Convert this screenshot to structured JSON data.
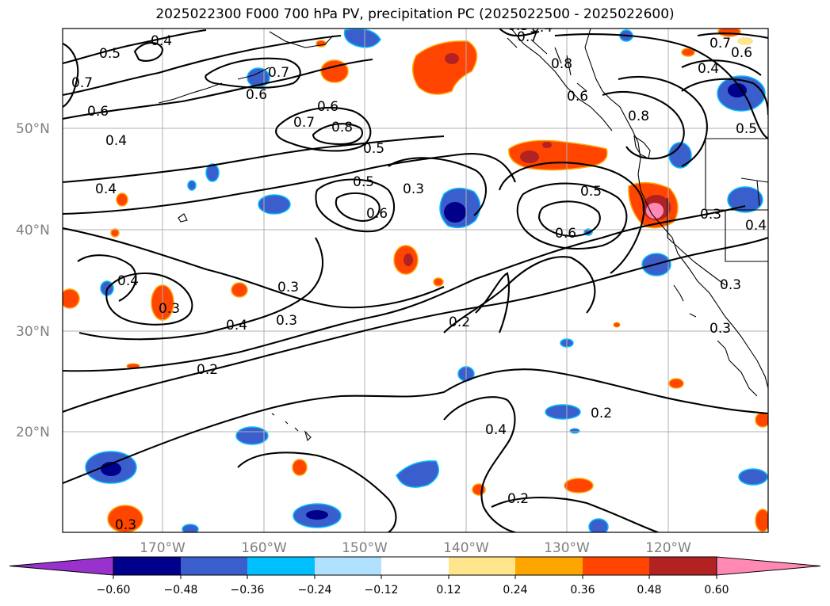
{
  "title": "2025022300 F000 700 hPa PV, precipitation PC (2025022500 - 2025022600)",
  "lat_labels": [
    "50°N",
    "40°N",
    "30°N",
    "20°N"
  ],
  "lon_labels": [
    "170°W",
    "160°W",
    "150°W",
    "140°W",
    "130°W",
    "120°W"
  ],
  "contour_labels": [
    "0.4",
    "0.7",
    "0.5",
    "0.7",
    "0.6",
    "0.7",
    "0.6",
    "0.4",
    "0.4",
    "0.8",
    "0.7",
    "0.8",
    "0.6",
    "0.5",
    "0.6",
    "0.7",
    "0.4",
    "0.6",
    "0.5",
    "0.3",
    "0.5",
    "0.6",
    "0.5",
    "0.6",
    "0.4",
    "0.3",
    "0.3",
    "0.4",
    "0.3",
    "0.4",
    "0.3",
    "0.2",
    "0.2",
    "0.4",
    "0.2",
    "0.2",
    "0.3",
    "0.3",
    "0.3",
    "0.8",
    "0.3",
    "0.4"
  ],
  "colorbar": {
    "tick_labels": [
      "−0.60",
      "−0.48",
      "−0.36",
      "−0.24",
      "−0.12",
      "0.12",
      "0.24",
      "0.36",
      "0.48",
      "0.60"
    ],
    "colors": [
      "#9932cc",
      "#00008b",
      "#3a5fcd",
      "#00bfff",
      "#b0e2ff",
      "#ffffff",
      "#ffe68c",
      "#ffa500",
      "#ff4500",
      "#b22222",
      "#ff89b4"
    ]
  }
}
